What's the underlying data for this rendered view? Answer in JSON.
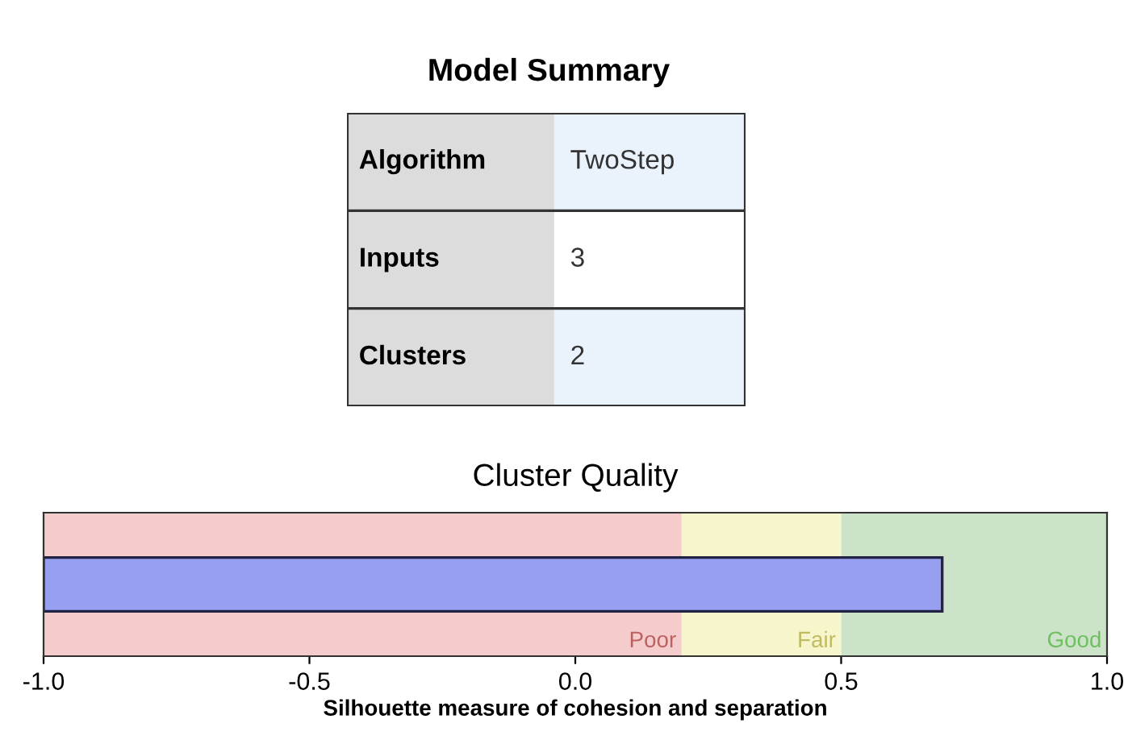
{
  "chart_data": [
    {
      "type": "other",
      "title": "Model Summary",
      "annotations": [
        "Algorithm",
        "TwoStep",
        "Inputs",
        "3",
        "Clusters",
        "2"
      ]
    },
    {
      "type": "bar",
      "title": "Cluster Quality",
      "orientation": "horizontal",
      "categories": [
        null
      ],
      "values": [
        1.69
      ],
      "base": [
        -1
      ],
      "color": "#97a0f0",
      "xlim": [
        -1,
        1
      ],
      "xticks": [
        {
          "value": -1,
          "label": "-1.0"
        },
        {
          "value": -0.5,
          "label": "-0.5"
        },
        {
          "value": 0,
          "label": "0.0"
        },
        {
          "value": 0.5,
          "label": "0.5"
        },
        {
          "value": 1,
          "label": "1.0"
        }
      ],
      "xlabel": "Silhouette measure of cohesion and separation",
      "tick_labels": "x",
      "grid": false,
      "bands": [
        {
          "axis": "x",
          "from": -1,
          "to": 0.2,
          "label": "Poor",
          "color": "#f5cccc"
        },
        {
          "axis": "x",
          "from": 0.2,
          "to": 0.5,
          "label": "Fair",
          "color": "#f7f5cc"
        },
        {
          "axis": "x",
          "from": 0.5,
          "to": 1,
          "label": "Good",
          "color": "#cde3c9"
        }
      ]
    }
  ]
}
